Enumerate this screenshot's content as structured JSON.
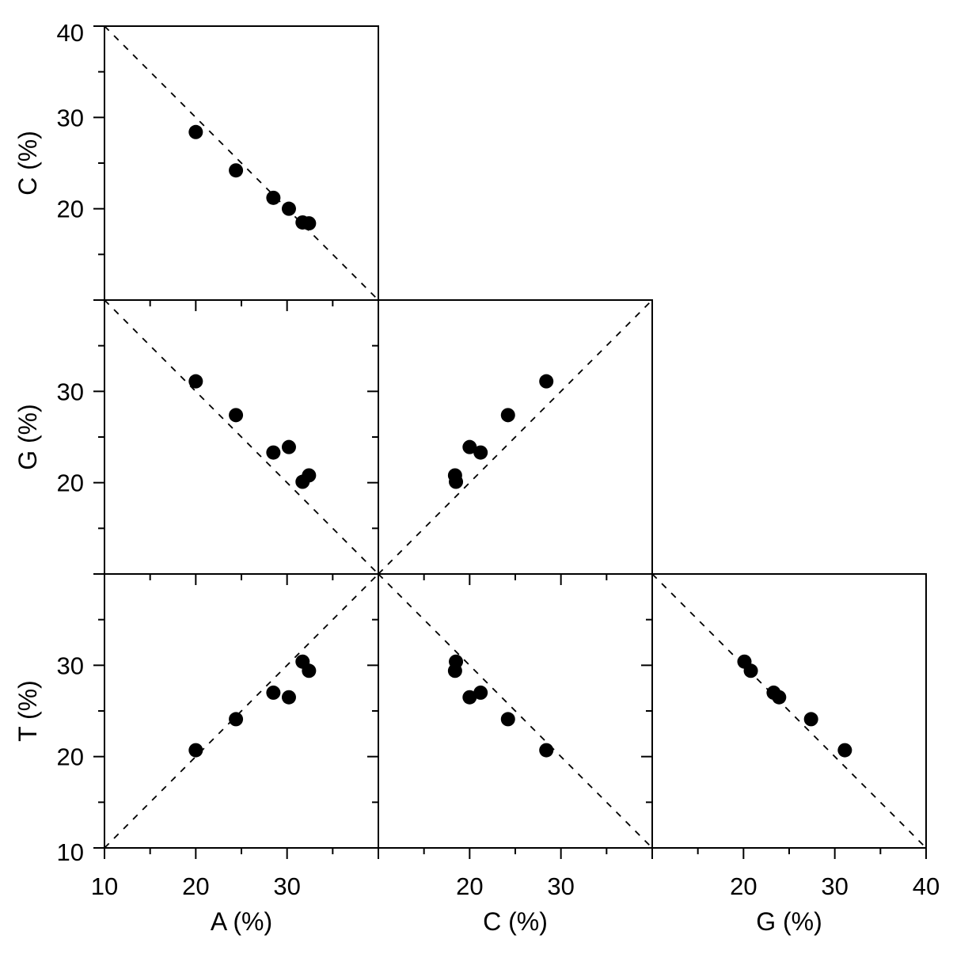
{
  "figure": {
    "background_color": "#ffffff",
    "foreground_color": "#000000",
    "title": ""
  },
  "chart_data": {
    "type": "scatter",
    "subtype": "scatter-matrix-lower-triangle",
    "description": "Pairwise scatter plots of DNA base composition percentages (A, C, G, T) with dashed reference lines",
    "axis_range": [
      10,
      40
    ],
    "tick_values": [
      10,
      15,
      20,
      25,
      30,
      35,
      40
    ],
    "major_ticks": [
      10,
      20,
      30,
      40
    ],
    "minor_ticks": [
      15,
      25,
      35
    ],
    "grid": false,
    "legend": null,
    "marker": {
      "shape": "circle",
      "color": "#000000",
      "radius_px": 9
    },
    "reference_line_style": {
      "dash": "dashed",
      "color": "#000000"
    },
    "reference_lines": {
      "identity": "y = x",
      "anti_diagonal": "x + y = 50"
    },
    "x_axes": [
      {
        "variable": "A",
        "label": "A (%)",
        "labeled_ticks": [
          10,
          20,
          30
        ]
      },
      {
        "variable": "C",
        "label": "C (%)",
        "labeled_ticks": [
          20,
          30
        ]
      },
      {
        "variable": "G",
        "label": "G (%)",
        "labeled_ticks": [
          20,
          30,
          40
        ]
      }
    ],
    "y_axes": [
      {
        "variable": "C",
        "label": "C (%)",
        "labeled_ticks": [
          20,
          30,
          40
        ]
      },
      {
        "variable": "G",
        "label": "G (%)",
        "labeled_ticks": [
          20,
          30
        ]
      },
      {
        "variable": "T",
        "label": "T (%)",
        "labeled_ticks": [
          10,
          20,
          30
        ]
      }
    ],
    "panels": [
      {
        "row": 0,
        "col": 0,
        "x": "A",
        "y": "C",
        "reference_line": "anti_diagonal"
      },
      {
        "row": 1,
        "col": 0,
        "x": "A",
        "y": "G",
        "reference_line": "anti_diagonal"
      },
      {
        "row": 1,
        "col": 1,
        "x": "C",
        "y": "G",
        "reference_line": "identity"
      },
      {
        "row": 2,
        "col": 0,
        "x": "A",
        "y": "T",
        "reference_line": "identity"
      },
      {
        "row": 2,
        "col": 1,
        "x": "C",
        "y": "T",
        "reference_line": "anti_diagonal"
      },
      {
        "row": 2,
        "col": 2,
        "x": "G",
        "y": "T",
        "reference_line": "anti_diagonal"
      }
    ],
    "points": [
      {
        "A": 20.0,
        "C": 28.4,
        "G": 31.1,
        "T": 20.7
      },
      {
        "A": 24.4,
        "C": 24.2,
        "G": 27.4,
        "T": 24.1
      },
      {
        "A": 28.5,
        "C": 21.2,
        "G": 23.3,
        "T": 27.0
      },
      {
        "A": 30.2,
        "C": 20.0,
        "G": 23.9,
        "T": 26.5
      },
      {
        "A": 31.7,
        "C": 18.5,
        "G": 20.1,
        "T": 30.4
      },
      {
        "A": 32.4,
        "C": 18.4,
        "G": 20.8,
        "T": 29.4
      }
    ]
  }
}
